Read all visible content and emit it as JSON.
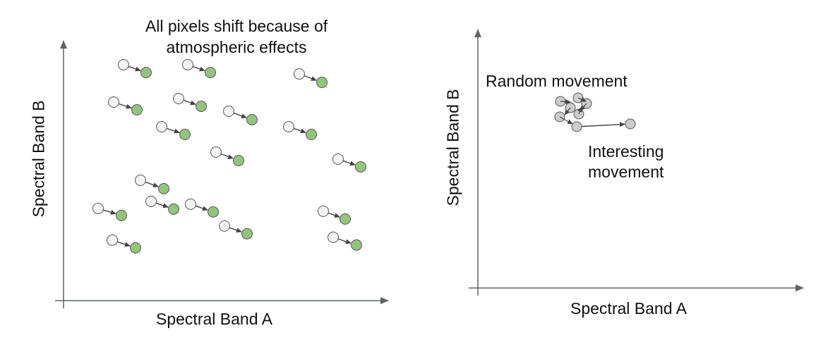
{
  "left_panel": {
    "title_line1": "All pixels shift because of",
    "title_line2": "atmospheric effects",
    "x_label": "Spectral Band A",
    "y_label": "Spectral Band B"
  },
  "right_panel": {
    "x_label": "Spectral Band A",
    "y_label": "Spectral Band B",
    "random_label": "Random movement",
    "interesting_label_line1": "Interesting",
    "interesting_label_line2": "movement"
  },
  "colors": {
    "axis": "#5f6368",
    "before_fill": "#f3f3f3",
    "after_fill": "#93c47d",
    "grey_fill": "#cccccc",
    "stroke": "#555555",
    "arrow": "#444444"
  }
}
